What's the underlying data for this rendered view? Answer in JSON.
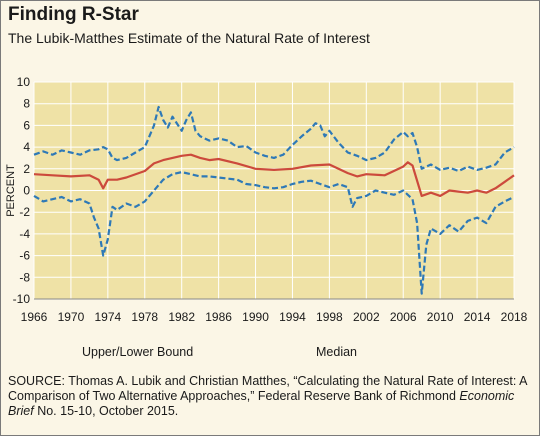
{
  "title": "Finding R-Star",
  "subtitle": "The Lubik-Matthes Estimate of the Natural Rate of Interest",
  "source": {
    "lead": "SOURCE:",
    "text": "Thomas A. Lubik and Christian Matthes, “Calculating the Natural Rate of Interest: A Comparison of Two Alternative Approaches,” Federal Reserve Bank of Richmond",
    "italic": "Economic Brief",
    "tail": "No. 15-10, October 2015."
  },
  "colors": {
    "band": "#2e79b7",
    "median": "#cc4a3c",
    "plot_bg": "#efe2a6",
    "grid": "#ffffff"
  },
  "chart_data": {
    "type": "line",
    "title": "Finding R-Star",
    "subtitle": "The Lubik-Matthes Estimate of the Natural Rate of Interest",
    "xlabel": "",
    "ylabel": "PERCENT",
    "xlim": [
      1966,
      2018
    ],
    "ylim": [
      -10,
      10
    ],
    "x_ticks": [
      "1966",
      "1970",
      "1974",
      "1978",
      "1982",
      "1986",
      "1990",
      "1994",
      "1998",
      "2002",
      "2006",
      "2010",
      "2014",
      "2018"
    ],
    "y_ticks": [
      "10",
      "8",
      "6",
      "4",
      "2",
      "0",
      "-2",
      "-4",
      "-6",
      "-8",
      "-10"
    ],
    "grid": true,
    "legend": "bottom",
    "series": [
      {
        "name": "Upper/Lower Bound",
        "style": "dashed",
        "x": [
          1966,
          1967,
          1968,
          1969,
          1970,
          1971,
          1972,
          1973,
          1973.5,
          1974,
          1974.5,
          1975,
          1976,
          1977,
          1978,
          1979,
          1979.5,
          1980,
          1980.5,
          1981,
          1982,
          1982.5,
          1983,
          1983.5,
          1984,
          1985,
          1986,
          1987,
          1988,
          1989,
          1990,
          1991,
          1992,
          1993,
          1994,
          1995,
          1996,
          1996.5,
          1997,
          1997.5,
          1998,
          1999,
          2000,
          2001,
          2002,
          2003,
          2004,
          2005,
          2006,
          2006.5,
          2007,
          2007.5,
          2008,
          2009,
          2010,
          2011,
          2012,
          2013,
          2014,
          2015,
          2016,
          2017,
          2018
        ],
        "values": [
          3.3,
          3.6,
          3.3,
          3.7,
          3.5,
          3.3,
          3.7,
          3.8,
          4.0,
          3.8,
          3.0,
          2.8,
          3.0,
          3.5,
          4.0,
          6.0,
          7.7,
          6.5,
          5.8,
          6.8,
          5.5,
          6.5,
          7.2,
          5.5,
          5.0,
          4.6,
          4.8,
          4.6,
          4.0,
          4.1,
          3.5,
          3.2,
          3.0,
          3.3,
          4.2,
          5.0,
          5.7,
          6.2,
          6.0,
          5.0,
          5.5,
          4.4,
          3.5,
          3.2,
          2.8,
          3.0,
          3.5,
          4.7,
          5.4,
          5.0,
          5.3,
          4.0,
          2.0,
          2.4,
          1.9,
          2.1,
          1.8,
          2.2,
          1.9,
          2.1,
          2.4,
          3.5,
          4.0
        ]
      },
      {
        "name": "",
        "style": "dashed",
        "x": [
          1966,
          1967,
          1968,
          1969,
          1970,
          1971,
          1972,
          1972.5,
          1973,
          1973.5,
          1974,
          1974.5,
          1975,
          1976,
          1977,
          1978,
          1979,
          1980,
          1981,
          1982,
          1983,
          1984,
          1985,
          1986,
          1987,
          1988,
          1989,
          1990,
          1991,
          1992,
          1993,
          1994,
          1995,
          1996,
          1997,
          1998,
          1999,
          2000,
          2000.5,
          2001,
          2002,
          2003,
          2004,
          2005,
          2006,
          2007,
          2007.5,
          2008,
          2008.5,
          2009,
          2010,
          2011,
          2012,
          2013,
          2014,
          2015,
          2016,
          2017,
          2018
        ],
        "values": [
          -0.5,
          -1.0,
          -0.8,
          -0.6,
          -1.0,
          -0.8,
          -1.2,
          -2.5,
          -3.5,
          -6.0,
          -4.5,
          -1.5,
          -1.8,
          -1.2,
          -1.5,
          -1.0,
          0.0,
          1.0,
          1.5,
          1.7,
          1.5,
          1.3,
          1.3,
          1.2,
          1.1,
          1.0,
          0.6,
          0.5,
          0.3,
          0.2,
          0.3,
          0.6,
          0.8,
          0.9,
          0.6,
          0.3,
          0.6,
          0.3,
          -1.5,
          -0.7,
          -0.5,
          0.0,
          -0.2,
          -0.4,
          0.0,
          -0.8,
          -3.0,
          -9.5,
          -5.0,
          -3.5,
          -4.0,
          -3.2,
          -3.8,
          -2.8,
          -2.5,
          -3.0,
          -1.5,
          -1.0,
          -0.6
        ]
      },
      {
        "name": "Median",
        "style": "solid",
        "x": [
          1966,
          1968,
          1970,
          1972,
          1973,
          1973.5,
          1974,
          1975,
          1976,
          1978,
          1979,
          1980,
          1981,
          1982,
          1983,
          1984,
          1985,
          1986,
          1988,
          1990,
          1992,
          1994,
          1996,
          1998,
          2000,
          2001,
          2002,
          2004,
          2006,
          2006.5,
          2007,
          2008,
          2009,
          2010,
          2011,
          2012,
          2013,
          2014,
          2015,
          2016,
          2017,
          2018
        ],
        "values": [
          1.5,
          1.4,
          1.3,
          1.4,
          1.0,
          0.2,
          1.0,
          1.0,
          1.2,
          1.8,
          2.5,
          2.8,
          3.0,
          3.2,
          3.3,
          3.0,
          2.8,
          2.9,
          2.5,
          2.0,
          1.9,
          2.0,
          2.3,
          2.4,
          1.6,
          1.3,
          1.5,
          1.4,
          2.2,
          2.6,
          2.3,
          -0.5,
          -0.2,
          -0.5,
          0.0,
          -0.1,
          -0.2,
          0.0,
          -0.2,
          0.2,
          0.8,
          1.4
        ]
      }
    ]
  },
  "legend": {
    "items": [
      {
        "label": "Upper/Lower Bound"
      },
      {
        "label": "Median"
      }
    ]
  }
}
